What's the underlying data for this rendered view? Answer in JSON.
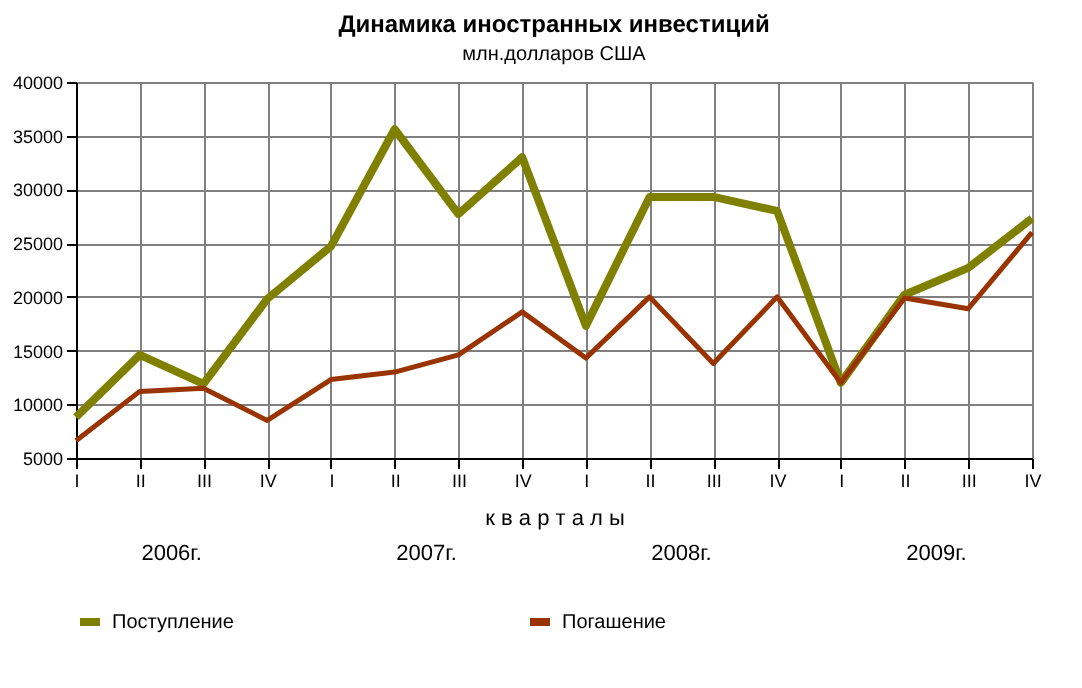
{
  "chart_data": {
    "type": "line",
    "title": "Динамика иностранных инвестиций",
    "subtitle": "млн.долларов США",
    "xlabel": "к в а р т а л ы",
    "categories": [
      "I",
      "II",
      "III",
      "IV",
      "I",
      "II",
      "III",
      "IV",
      "I",
      "II",
      "III",
      "IV",
      "I",
      "II",
      "III",
      "IV"
    ],
    "series": [
      {
        "name": "Поступление",
        "color": "#808000",
        "values": [
          8800,
          14600,
          11900,
          19800,
          24700,
          35600,
          27700,
          33000,
          17300,
          29300,
          29300,
          28000,
          12000,
          20200,
          22700,
          27300
        ]
      },
      {
        "name": "Погашение",
        "color": "#993300",
        "values": [
          6600,
          11200,
          11500,
          8500,
          12300,
          13000,
          14600,
          18600,
          14300,
          20000,
          13800,
          20000,
          12000,
          19900,
          18900,
          26000
        ]
      }
    ],
    "ylim": [
      5000,
      40000
    ],
    "yticks": [
      5000,
      10000,
      15000,
      20000,
      25000,
      30000,
      35000,
      40000
    ],
    "annotations": [
      "2006г.",
      "2007г.",
      "2008г.",
      "2009г."
    ],
    "grid": true,
    "legend": "bottom",
    "marker": "none",
    "line_style": "solid"
  }
}
